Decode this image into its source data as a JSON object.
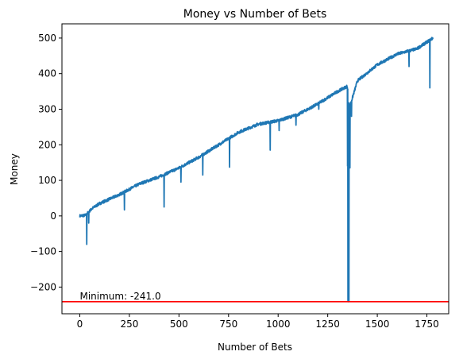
{
  "chart_data": {
    "type": "line",
    "title": "Money vs Number of Bets",
    "xlabel": "Number of Bets",
    "ylabel": "Money",
    "xlim": [
      -90,
      1860
    ],
    "ylim": [
      -275,
      540
    ],
    "x_ticks": [
      0,
      250,
      500,
      750,
      1000,
      1250,
      1500,
      1750
    ],
    "y_ticks": [
      -200,
      -100,
      0,
      100,
      200,
      300,
      400,
      500
    ],
    "grid": false,
    "series_color": "#1f77b4",
    "trend": [
      [
        0,
        0
      ],
      [
        30,
        2
      ],
      [
        60,
        20
      ],
      [
        100,
        35
      ],
      [
        200,
        60
      ],
      [
        300,
        90
      ],
      [
        400,
        110
      ],
      [
        500,
        135
      ],
      [
        600,
        165
      ],
      [
        700,
        200
      ],
      [
        800,
        235
      ],
      [
        900,
        258
      ],
      [
        1000,
        268
      ],
      [
        1100,
        285
      ],
      [
        1200,
        315
      ],
      [
        1300,
        350
      ],
      [
        1350,
        365
      ],
      [
        1360,
        305
      ],
      [
        1400,
        380
      ],
      [
        1500,
        425
      ],
      [
        1600,
        455
      ],
      [
        1700,
        470
      ],
      [
        1780,
        500
      ]
    ],
    "dips": [
      [
        35,
        -80
      ],
      [
        45,
        -20
      ],
      [
        225,
        17
      ],
      [
        425,
        25
      ],
      [
        510,
        95
      ],
      [
        620,
        115
      ],
      [
        755,
        137
      ],
      [
        960,
        185
      ],
      [
        1005,
        240
      ],
      [
        1090,
        255
      ],
      [
        1205,
        300
      ],
      [
        1350,
        140
      ],
      [
        1352,
        -241
      ],
      [
        1357,
        -241
      ],
      [
        1362,
        135
      ],
      [
        1370,
        280
      ],
      [
        1660,
        420
      ],
      [
        1765,
        360
      ]
    ],
    "min_line": {
      "value": -241,
      "color": "#ff0000"
    },
    "annotation": {
      "text": "Minimum: -241.0",
      "x": 0,
      "y": -241
    }
  }
}
